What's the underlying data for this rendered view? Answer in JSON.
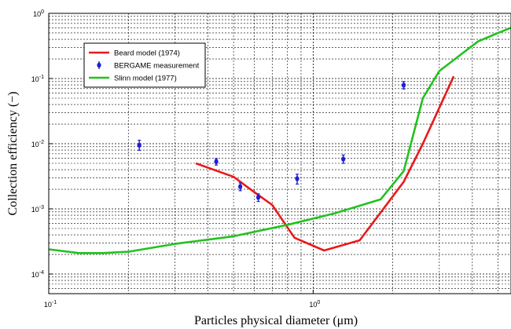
{
  "chart_data": {
    "type": "line",
    "xlabel": "Particles physical diameter (μm)",
    "ylabel": "Collection efficiency (−)",
    "xscale": "log",
    "yscale": "log",
    "xlim": [
      0.1,
      5.6
    ],
    "ylim": [
      5e-05,
      1
    ],
    "grid": true,
    "legend_position": "top-left",
    "x_ticks": [
      {
        "base": "10",
        "exp": "-1",
        "value": 0.1
      },
      {
        "base": "10",
        "exp": "0",
        "value": 1
      }
    ],
    "y_ticks": [
      {
        "base": "10",
        "exp": "0",
        "value": 1
      },
      {
        "base": "10",
        "exp": "-1",
        "value": 0.1
      },
      {
        "base": "10",
        "exp": "-2",
        "value": 0.01
      },
      {
        "base": "10",
        "exp": "-3",
        "value": 0.001
      },
      {
        "base": "10",
        "exp": "-4",
        "value": 0.0001
      }
    ],
    "series": [
      {
        "name": "Beard model (1974)",
        "kind": "line",
        "color": "#e8191c",
        "points": [
          [
            0.36,
            0.005
          ],
          [
            0.5,
            0.0031
          ],
          [
            0.6,
            0.0018
          ],
          [
            0.7,
            0.00115
          ],
          [
            0.85,
            0.00036
          ],
          [
            1.1,
            0.00023
          ],
          [
            1.5,
            0.00033
          ],
          [
            2.2,
            0.0026
          ],
          [
            2.6,
            0.01
          ],
          [
            3.4,
            0.108
          ]
        ]
      },
      {
        "name": "BERGAME measurement",
        "kind": "errorbar",
        "color": "#1f1fd6",
        "points": [
          {
            "x": 0.22,
            "y": 0.0095,
            "lo": 0.0079,
            "hi": 0.0113
          },
          {
            "x": 0.43,
            "y": 0.0053,
            "lo": 0.0047,
            "hi": 0.0059
          },
          {
            "x": 0.53,
            "y": 0.0022,
            "lo": 0.0019,
            "hi": 0.0025
          },
          {
            "x": 0.62,
            "y": 0.0015,
            "lo": 0.0013,
            "hi": 0.0017
          },
          {
            "x": 0.87,
            "y": 0.0029,
            "lo": 0.0024,
            "hi": 0.0034
          },
          {
            "x": 1.3,
            "y": 0.0058,
            "lo": 0.005,
            "hi": 0.0067
          },
          {
            "x": 2.2,
            "y": 0.079,
            "lo": 0.069,
            "hi": 0.09
          }
        ]
      },
      {
        "name": "Slinn model (1977)",
        "kind": "line",
        "color": "#22c21e",
        "points": [
          [
            0.1,
            0.00024
          ],
          [
            0.13,
            0.00021
          ],
          [
            0.16,
            0.00021
          ],
          [
            0.2,
            0.00022
          ],
          [
            0.3,
            0.00029
          ],
          [
            0.5,
            0.00038
          ],
          [
            0.8,
            0.00057
          ],
          [
            1.2,
            0.00085
          ],
          [
            1.8,
            0.0014
          ],
          [
            2.2,
            0.0038
          ],
          [
            2.6,
            0.05
          ],
          [
            3.0,
            0.13
          ],
          [
            3.6,
            0.23
          ],
          [
            4.2,
            0.37
          ],
          [
            5.0,
            0.5
          ],
          [
            5.6,
            0.6
          ]
        ]
      }
    ]
  }
}
